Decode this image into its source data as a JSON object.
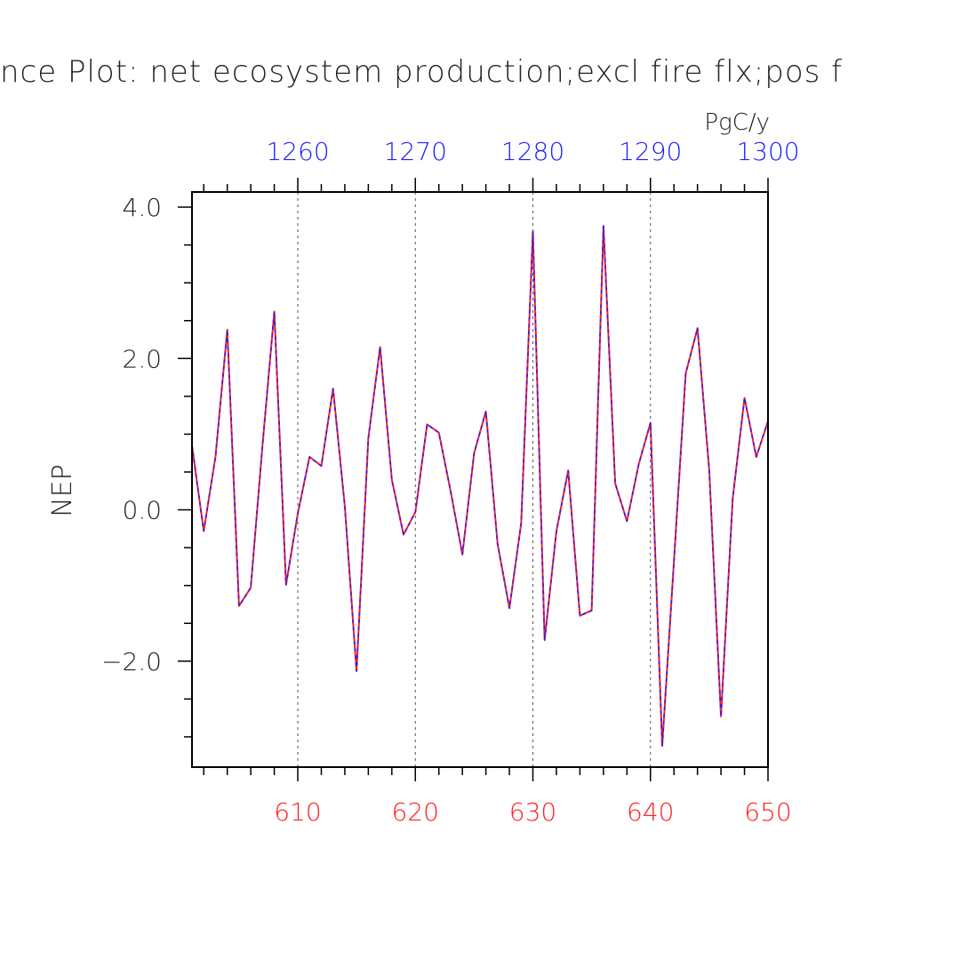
{
  "chart_data": {
    "type": "line",
    "title": "nce Plot: net ecosystem production;excl fire flx;pos f",
    "ylabel": "NEP",
    "units": "PgC/y",
    "ylim": [
      -3.4,
      4.2
    ],
    "yticks": [
      4.0,
      2.0,
      0.0,
      -2.0
    ],
    "ytick_labels": [
      "4.0",
      "2.0",
      "0.0",
      "−2.0"
    ],
    "bottom_axis": {
      "range": [
        601,
        650
      ],
      "ticks": [
        610,
        620,
        630,
        640,
        650
      ],
      "tick_labels": [
        "610",
        "620",
        "630",
        "640",
        "650"
      ],
      "color": "#ff2020"
    },
    "top_axis": {
      "range": [
        1251,
        1300
      ],
      "ticks": [
        1260,
        1270,
        1280,
        1290,
        1300
      ],
      "tick_labels": [
        "1260",
        "1270",
        "1280",
        "1290",
        "1300"
      ],
      "color": "#2020ff"
    },
    "grid": "vertical dashed at labeled ticks",
    "series": [
      {
        "color": "#ff2020",
        "style": "solid",
        "x": [
          601,
          602,
          603,
          604,
          605,
          606,
          607,
          608,
          609,
          610,
          611,
          612,
          613,
          614,
          615,
          616,
          617,
          618,
          619,
          620,
          621,
          622,
          623,
          624,
          625,
          626,
          627,
          628,
          629,
          630,
          631,
          632,
          633,
          634,
          635,
          636,
          637,
          638,
          639,
          640,
          641,
          642,
          643,
          644,
          645,
          646,
          647,
          648,
          649,
          650
        ],
        "values": [
          0.85,
          -0.28,
          0.7,
          2.38,
          -1.27,
          -1.03,
          0.85,
          2.62,
          -0.99,
          -0.05,
          0.7,
          0.58,
          1.6,
          0.05,
          -2.13,
          0.95,
          2.15,
          0.4,
          -0.33,
          -0.03,
          1.13,
          1.02,
          0.25,
          -0.59,
          0.75,
          1.3,
          -0.45,
          -1.3,
          -0.18,
          3.68,
          -1.72,
          -0.28,
          0.52,
          -1.4,
          -1.33,
          3.75,
          0.35,
          -0.15,
          0.6,
          1.15,
          -3.12,
          -0.68,
          1.8,
          2.4,
          0.52,
          -2.73,
          0.15,
          1.48,
          0.7,
          1.17
        ]
      },
      {
        "color": "#2020ff",
        "style": "dashed",
        "x": [
          601,
          602,
          603,
          604,
          605,
          606,
          607,
          608,
          609,
          610,
          611,
          612,
          613,
          614,
          615,
          616,
          617,
          618,
          619,
          620,
          621,
          622,
          623,
          624,
          625,
          626,
          627,
          628,
          629,
          630,
          631,
          632,
          633,
          634,
          635,
          636,
          637,
          638,
          639,
          640,
          641,
          642,
          643,
          644,
          645,
          646,
          647,
          648,
          649,
          650
        ],
        "values": [
          0.85,
          -0.28,
          0.7,
          2.38,
          -1.27,
          -1.03,
          0.85,
          2.62,
          -0.99,
          -0.05,
          0.7,
          0.58,
          1.6,
          0.05,
          -2.13,
          0.95,
          2.15,
          0.4,
          -0.33,
          -0.03,
          1.13,
          1.02,
          0.25,
          -0.59,
          0.75,
          1.3,
          -0.45,
          -1.3,
          -0.18,
          3.68,
          -1.72,
          -0.28,
          0.52,
          -1.4,
          -1.33,
          3.75,
          0.35,
          -0.15,
          0.6,
          1.15,
          -3.12,
          -0.68,
          1.8,
          2.4,
          0.52,
          -2.73,
          0.15,
          1.48,
          0.7,
          1.17
        ]
      }
    ]
  }
}
